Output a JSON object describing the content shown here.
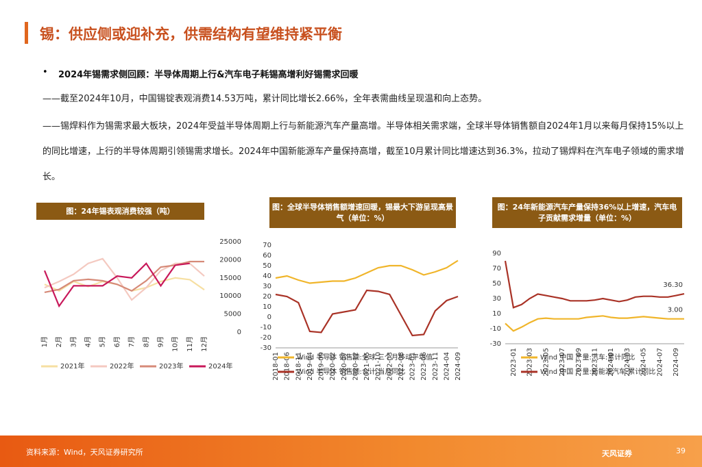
{
  "header": {
    "title": "锡：供应侧或迎补充，供需结构有望维持紧平衡"
  },
  "body": {
    "bullet": "2024年锡需求侧回顾：半导体周期上行&汽车电子耗锡高增利好锡需求回暖",
    "paragraphs": [
      "——截至2024年10月，中国锡锭表观消费14.53万吨，累计同比增长2.66%，全年表需曲线呈现温和向上态势。",
      "——锡焊料作为锡需求最大板块，2024年受益半导体周期上行与新能源汽车产量高增。半导体相关需求端，全球半导体销售额自2024年1月以来每月保持15%以上的同比增速，上行的半导体周期引领锡需求增长。2024年中国新能源车产量保持高增，截至10月累计同比增速达到36.3%，拉动了锡焊料在汽车电子领域的需求增长。"
    ]
  },
  "chart_data": [
    {
      "type": "line",
      "title": "图：24年锡表观消费较强（吨）",
      "y_axis_side": "right",
      "categories": [
        "1月",
        "2月",
        "3月",
        "4月",
        "5月",
        "6月",
        "7月",
        "8月",
        "9月",
        "10月",
        "11月",
        "12月"
      ],
      "ylim": [
        0,
        25000
      ],
      "yticks": [
        0,
        5000,
        10000,
        15000,
        20000,
        25000
      ],
      "series": [
        {
          "name": "2021年",
          "color": "#f6dfa2",
          "values": [
            13200,
            11400,
            14000,
            12600,
            14000,
            13200,
            11400,
            12300,
            14000,
            15000,
            14500,
            11700
          ]
        },
        {
          "name": "2022年",
          "color": "#f4c9c0",
          "values": [
            12300,
            14000,
            16000,
            19000,
            20300,
            15000,
            8900,
            12300,
            17000,
            19000,
            19000,
            15500
          ]
        },
        {
          "name": "2023年",
          "color": "#d68a78",
          "values": [
            11000,
            11800,
            14200,
            14600,
            14200,
            13200,
            11400,
            14200,
            18000,
            18500,
            19500,
            19500
          ]
        },
        {
          "name": "2024年",
          "color": "#c8185a",
          "values": [
            17000,
            7200,
            12800,
            12800,
            12800,
            15500,
            15000,
            19000,
            12800,
            18500,
            19000,
            null
          ]
        }
      ]
    },
    {
      "type": "line",
      "title": "图：全球半导体销售额增速回暖，锡最大下游呈现高景气（单位：%）",
      "y_axis_side": "left",
      "categories": [
        "2018-01",
        "2018-06",
        "2018-11",
        "2019-04",
        "2019-09",
        "2020-02",
        "2020-07",
        "2020-12",
        "2021-05",
        "2021-10",
        "2022-03",
        "2022-08",
        "2023-01",
        "2023-06",
        "2023-11",
        "2024-04",
        "2024-09"
      ],
      "ylim": [
        -30,
        70
      ],
      "yticks": [
        -30,
        -20,
        -10,
        0,
        10,
        20,
        30,
        40,
        50,
        60,
        70
      ],
      "series": [
        {
          "name": "Wind 半导体 销售额:全球 三个月移动平均值",
          "color": "#f0b52a",
          "values": [
            38,
            40,
            36,
            33,
            34,
            35,
            35,
            38,
            43,
            48,
            50,
            50,
            46,
            41,
            44,
            48,
            55
          ]
        },
        {
          "name": "Wind 半导体 销售额:合计:当月同比",
          "color": "#a93226",
          "values": [
            22,
            20,
            14,
            -14,
            -15,
            3,
            5,
            7,
            26,
            25,
            22,
            2,
            -18,
            -17,
            6,
            16,
            20
          ]
        }
      ]
    },
    {
      "type": "line",
      "title": "图：24年新能源汽车产量保持36%以上增速，汽车电子贡献需求增量（单位：%）",
      "y_axis_side": "left",
      "categories": [
        null,
        "2023-01",
        null,
        "2023-03",
        null,
        "2023-05",
        null,
        "2023-07",
        null,
        "2023-09",
        null,
        "2023-11",
        null,
        "2024-01",
        null,
        "2024-03",
        null,
        "2024-05",
        null,
        "2024-07",
        null,
        "2024-09",
        null
      ],
      "ylim": [
        -30,
        90
      ],
      "yticks": [
        -30,
        -10,
        10,
        30,
        50,
        70,
        90
      ],
      "series": [
        {
          "name": "Wind 中国 产量:汽车:累计同比",
          "color": "#f0b52a",
          "values": [
            -3,
            -13,
            -8,
            -2,
            3,
            4,
            3,
            3,
            3,
            3,
            5,
            6,
            7,
            5,
            4,
            4,
            5,
            6,
            5,
            4,
            3,
            3,
            3
          ],
          "value_labels": [
            null,
            null,
            null,
            null,
            null,
            null,
            null,
            null,
            null,
            null,
            null,
            null,
            null,
            null,
            null,
            null,
            null,
            null,
            null,
            null,
            null,
            null,
            "3.00"
          ]
        },
        {
          "name": "Wind 中国 产量:新能源汽车:累计同比",
          "color": "#a93226",
          "values": [
            80,
            18,
            22,
            30,
            36,
            34,
            32,
            30,
            27,
            27,
            27,
            28,
            30,
            28,
            26,
            28,
            32,
            33,
            33,
            32,
            32,
            34,
            36.3
          ],
          "value_labels": [
            null,
            null,
            null,
            null,
            null,
            null,
            null,
            null,
            null,
            null,
            null,
            null,
            null,
            null,
            null,
            null,
            null,
            null,
            null,
            null,
            null,
            null,
            "36.30"
          ]
        }
      ]
    }
  ],
  "footer": {
    "source": "资料来源：Wind，天风证券研究所",
    "logo": "天风证券",
    "page": "39"
  }
}
